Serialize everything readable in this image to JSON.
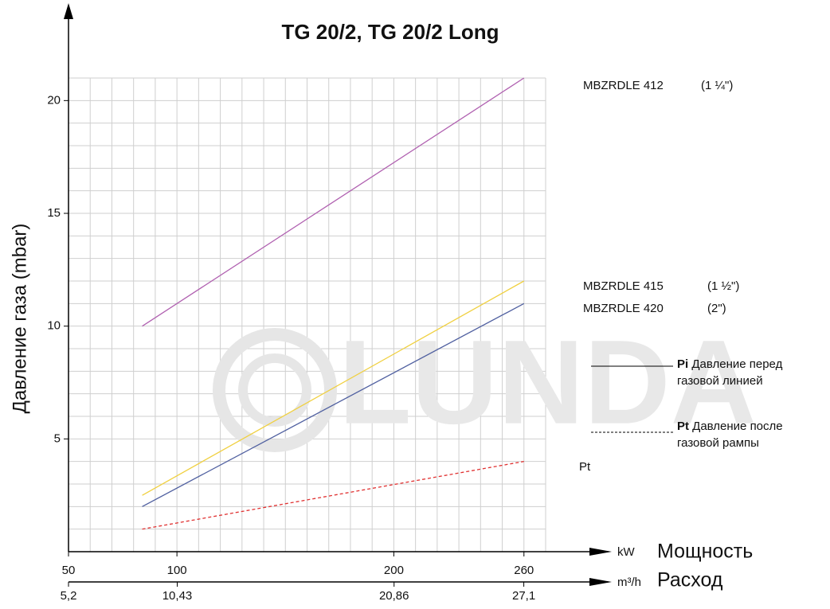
{
  "chart_data": {
    "type": "line",
    "title": "TG 20/2, TG 20/2 Long",
    "ylabel": "Давление газа (mbar)",
    "xunit": "kW",
    "xlabel": "Мощность",
    "x2unit": "m³/h",
    "x2label": "Расход",
    "watermark": "LUNDA",
    "x": [
      84,
      260
    ],
    "xlim": [
      50,
      270
    ],
    "xticks": [
      50,
      100,
      200,
      260
    ],
    "x2lim": [
      5.2,
      28.15
    ],
    "x2ticks": [
      {
        "value": 5.2,
        "label": "5,2"
      },
      {
        "value": 10.43,
        "label": "10,43"
      },
      {
        "value": 20.86,
        "label": "20,86"
      },
      {
        "value": 27.1,
        "label": "27,1"
      }
    ],
    "ylim": [
      0,
      21
    ],
    "yticks": [
      5,
      10,
      15,
      20
    ],
    "xminor": [
      60,
      70,
      80,
      90,
      100,
      110,
      120,
      130,
      140,
      150,
      160,
      170,
      180,
      190,
      200,
      210,
      220,
      230,
      240,
      250,
      260,
      270
    ],
    "yminor": [
      1,
      2,
      3,
      4,
      5,
      6,
      7,
      8,
      9,
      10,
      11,
      12,
      13,
      14,
      15,
      16,
      17,
      18,
      19,
      20,
      21
    ],
    "grid": true,
    "series": [
      {
        "name": "MBZRDLE 412",
        "size": "(1 ¼\")",
        "color": "#b060b0",
        "dash": false,
        "values": [
          10,
          21
        ]
      },
      {
        "name": "MBZRDLE 415",
        "size": "(1 ½\")",
        "color": "#f0d040",
        "dash": false,
        "values": [
          2.5,
          12
        ]
      },
      {
        "name": "MBZRDLE 420",
        "size": "(2\")",
        "color": "#5060a0",
        "dash": false,
        "values": [
          2,
          11
        ]
      },
      {
        "name": "Pt",
        "color": "#e03030",
        "dash": true,
        "values": [
          1,
          4
        ]
      }
    ],
    "legend": [
      {
        "symbol": "Pi",
        "lines": [
          "Давление перед",
          "газовой линией"
        ],
        "dash": false
      },
      {
        "symbol": "Pt",
        "lines": [
          "Давление после",
          "газовой рампы"
        ],
        "dash": true
      }
    ]
  }
}
